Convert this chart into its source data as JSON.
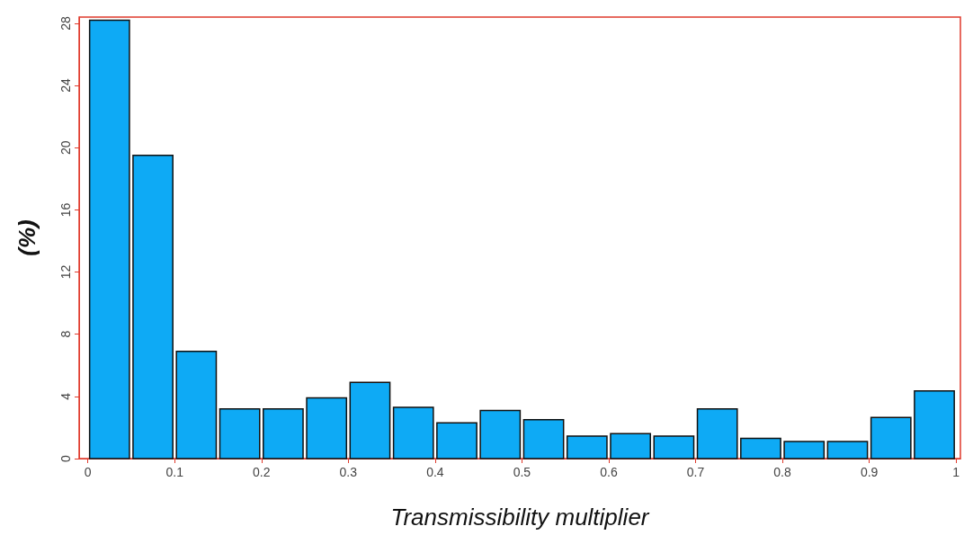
{
  "chart_data": {
    "type": "histogram",
    "xlabel": "Transmissibility multiplier",
    "ylabel": "(%)",
    "bins": [
      0,
      0.05,
      0.1,
      0.15,
      0.2,
      0.25,
      0.3,
      0.35,
      0.4,
      0.45,
      0.5,
      0.55,
      0.6,
      0.65,
      0.7,
      0.75,
      0.8,
      0.85,
      0.9,
      0.95,
      1
    ],
    "values": [
      28.2,
      19.5,
      6.9,
      3.2,
      3.2,
      3.9,
      4.9,
      3.3,
      2.3,
      3.1,
      2.5,
      1.45,
      1.6,
      1.45,
      3.2,
      1.3,
      1.1,
      1.1,
      2.65,
      4.35
    ],
    "color": "#0eaaf5",
    "xlim": [
      -0.01,
      1.005
    ],
    "xticks": [
      0,
      0.1,
      0.2,
      0.3,
      0.4,
      0.5,
      0.6,
      0.7,
      0.8,
      0.9,
      1
    ],
    "ylim": [
      0,
      28.4
    ],
    "yticks": [
      0,
      4,
      8,
      12,
      16,
      20,
      24,
      28
    ]
  }
}
